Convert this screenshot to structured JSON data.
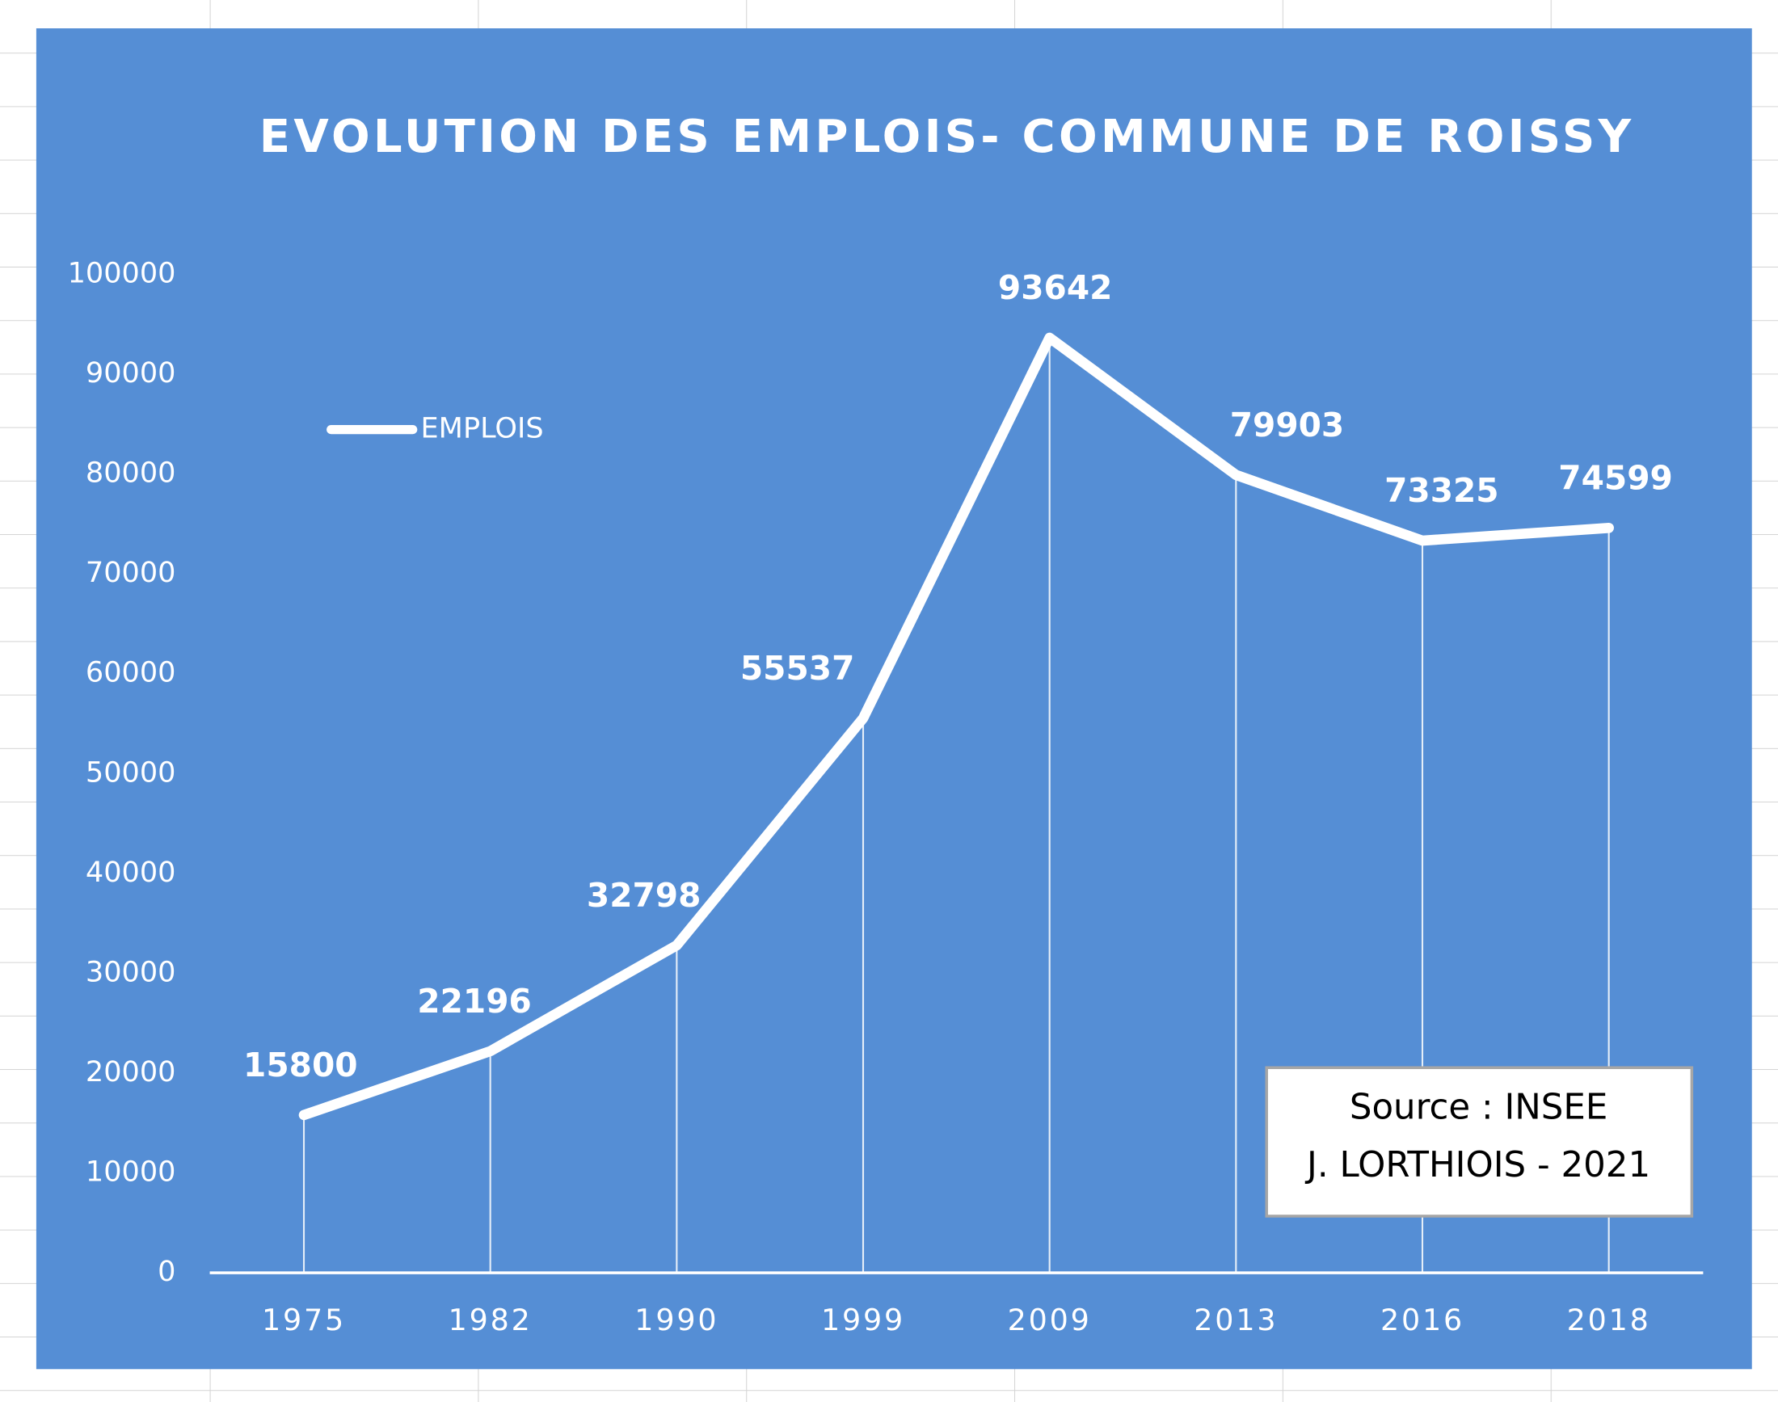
{
  "chart_data": {
    "type": "line",
    "title": "EVOLUTION DES EMPLOIS- COMMUNE DE ROISSY",
    "categories": [
      "1975",
      "1982",
      "1990",
      "1999",
      "2009",
      "2013",
      "2016",
      "2018"
    ],
    "series": [
      {
        "name": "EMPLOIS",
        "color": "#ffffff",
        "values": [
          15800,
          22196,
          32798,
          55537,
          93642,
          79903,
          73325,
          74599
        ]
      }
    ],
    "ylim": [
      0,
      100000
    ],
    "yticks": [
      0,
      10000,
      20000,
      30000,
      40000,
      50000,
      60000,
      70000,
      80000,
      90000,
      100000
    ],
    "grid": false,
    "drop_lines": true,
    "legend": "upper left",
    "annotations": [
      "Source : INSEE",
      "J. LORTHIOIS - 2021"
    ]
  }
}
